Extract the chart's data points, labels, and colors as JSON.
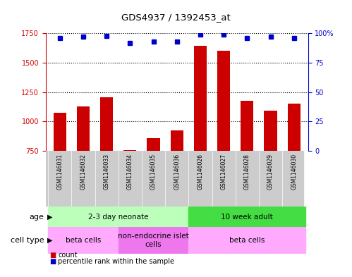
{
  "title": "GDS4937 / 1392453_at",
  "samples": [
    "GSM1146031",
    "GSM1146032",
    "GSM1146033",
    "GSM1146034",
    "GSM1146035",
    "GSM1146036",
    "GSM1146026",
    "GSM1146027",
    "GSM1146028",
    "GSM1146029",
    "GSM1146030"
  ],
  "counts": [
    1075,
    1130,
    1205,
    755,
    860,
    925,
    1645,
    1600,
    1175,
    1090,
    1155
  ],
  "percentile": [
    96,
    97,
    98,
    92,
    93,
    93,
    99,
    99,
    96,
    97,
    96
  ],
  "ylim_left": [
    750,
    1750
  ],
  "ylim_right": [
    0,
    100
  ],
  "yticks_left": [
    750,
    1000,
    1250,
    1500,
    1750
  ],
  "yticks_right": [
    0,
    25,
    50,
    75,
    100
  ],
  "bar_color": "#cc0000",
  "dot_color": "#0000cc",
  "age_groups": [
    {
      "label": "2-3 day neonate",
      "start": 0,
      "end": 6,
      "color": "#bbffbb"
    },
    {
      "label": "10 week adult",
      "start": 6,
      "end": 11,
      "color": "#44dd44"
    }
  ],
  "cell_type_groups": [
    {
      "label": "beta cells",
      "start": 0,
      "end": 3,
      "color": "#ffaaff"
    },
    {
      "label": "non-endocrine islet\ncells",
      "start": 3,
      "end": 6,
      "color": "#ee77ee"
    },
    {
      "label": "beta cells",
      "start": 6,
      "end": 11,
      "color": "#ffaaff"
    }
  ],
  "background_color": "#ffffff",
  "tick_label_color_left": "#cc0000",
  "tick_label_color_right": "#0000cc",
  "sample_bg_color": "#cccccc",
  "legend_red_label": "count",
  "legend_blue_label": "percentile rank within the sample",
  "age_label": "age",
  "celltype_label": "cell type"
}
